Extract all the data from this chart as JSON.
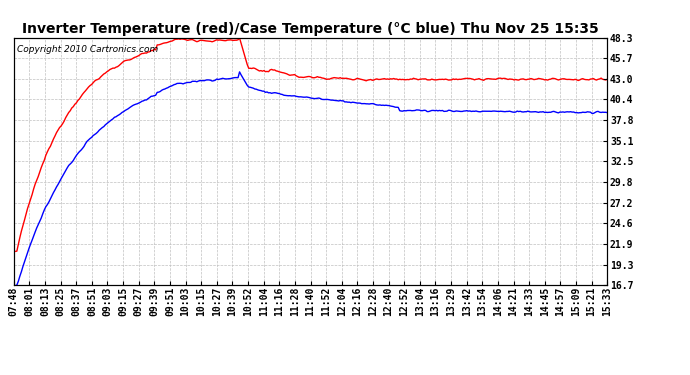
{
  "title": "Inverter Temperature (red)/Case Temperature (°C blue) Thu Nov 25 15:35",
  "copyright": "Copyright 2010 Cartronics.com",
  "ylabel_right_ticks": [
    16.7,
    19.3,
    21.9,
    24.6,
    27.2,
    29.8,
    32.5,
    35.1,
    37.8,
    40.4,
    43.0,
    45.7,
    48.3
  ],
  "x_labels": [
    "07:48",
    "08:01",
    "08:13",
    "08:25",
    "08:37",
    "08:51",
    "09:03",
    "09:15",
    "09:27",
    "09:39",
    "09:51",
    "10:03",
    "10:15",
    "10:27",
    "10:39",
    "10:52",
    "11:04",
    "11:16",
    "11:28",
    "11:40",
    "11:52",
    "12:04",
    "12:16",
    "12:28",
    "12:40",
    "12:52",
    "13:04",
    "13:16",
    "13:29",
    "13:42",
    "13:54",
    "14:06",
    "14:21",
    "14:33",
    "14:45",
    "14:57",
    "15:09",
    "15:21",
    "15:33"
  ],
  "ymin": 16.7,
  "ymax": 48.3,
  "red_color": "#ff0000",
  "blue_color": "#0000ff",
  "bg_color": "#ffffff",
  "grid_color": "#c0c0c0",
  "title_fontsize": 10,
  "copyright_fontsize": 6.5,
  "tick_fontsize": 7
}
